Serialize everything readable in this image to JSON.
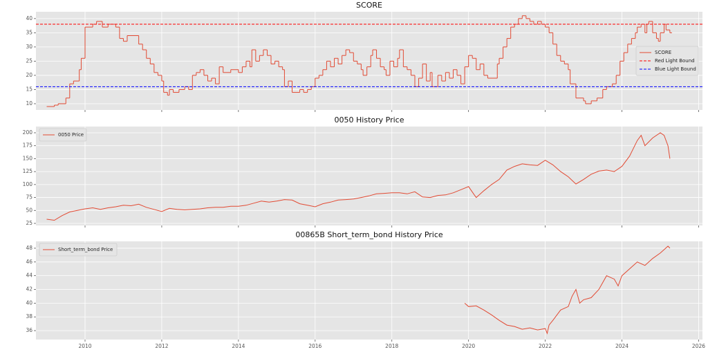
{
  "chart_data": [
    {
      "type": "line",
      "title": "SCORE",
      "drawstyle": "steps-post",
      "grid": true,
      "legend": "center right",
      "xlim": [
        2008.72,
        2026.1
      ],
      "xticks": [
        2010,
        2012,
        2014,
        2016,
        2018,
        2020,
        2022,
        2024,
        2026
      ],
      "ylim": [
        7.8,
        42.4
      ],
      "yticks": [
        10,
        15,
        20,
        25,
        30,
        35,
        40
      ],
      "series": [
        {
          "name": "SCORE",
          "color": "#e24a33",
          "x": [
            2009.0,
            2009.2,
            2009.3,
            2009.5,
            2009.6,
            2009.7,
            2009.85,
            2009.9,
            2010.0,
            2010.2,
            2010.3,
            2010.45,
            2010.6,
            2010.8,
            2010.9,
            2011.0,
            2011.1,
            2011.4,
            2011.5,
            2011.6,
            2011.7,
            2011.8,
            2011.9,
            2012.0,
            2012.05,
            2012.15,
            2012.2,
            2012.3,
            2012.45,
            2012.6,
            2012.7,
            2012.8,
            2012.9,
            2013.0,
            2013.1,
            2013.2,
            2013.3,
            2013.4,
            2013.5,
            2013.6,
            2013.8,
            2014.0,
            2014.1,
            2014.2,
            2014.3,
            2014.35,
            2014.45,
            2014.55,
            2014.65,
            2014.75,
            2014.85,
            2014.95,
            2015.05,
            2015.15,
            2015.2,
            2015.3,
            2015.4,
            2015.6,
            2015.7,
            2015.8,
            2015.9,
            2016.0,
            2016.1,
            2016.2,
            2016.3,
            2016.4,
            2016.5,
            2016.6,
            2016.7,
            2016.8,
            2016.9,
            2017.0,
            2017.1,
            2017.2,
            2017.25,
            2017.35,
            2017.45,
            2017.5,
            2017.6,
            2017.7,
            2017.8,
            2017.85,
            2017.95,
            2018.05,
            2018.15,
            2018.2,
            2018.3,
            2018.4,
            2018.5,
            2018.6,
            2018.7,
            2018.8,
            2018.9,
            2019.0,
            2019.05,
            2019.2,
            2019.3,
            2019.4,
            2019.5,
            2019.6,
            2019.7,
            2019.8,
            2019.9,
            2020.0,
            2020.1,
            2020.2,
            2020.3,
            2020.4,
            2020.5,
            2020.75,
            2020.8,
            2020.9,
            2021.0,
            2021.1,
            2021.2,
            2021.3,
            2021.4,
            2021.5,
            2021.6,
            2021.7,
            2021.8,
            2021.9,
            2022.0,
            2022.1,
            2022.2,
            2022.3,
            2022.4,
            2022.5,
            2022.6,
            2022.65,
            2022.8,
            2023.0,
            2023.05,
            2023.2,
            2023.35,
            2023.5,
            2023.6,
            2023.75,
            2023.85,
            2023.95,
            2024.05,
            2024.15,
            2024.25,
            2024.35,
            2024.4,
            2024.5,
            2024.6,
            2024.65,
            2024.7,
            2024.8,
            2024.9,
            2024.95,
            2025.0,
            2025.1,
            2025.15,
            2025.25
          ],
          "values": [
            9,
            9.5,
            10,
            12,
            17,
            18,
            22,
            26,
            37,
            38,
            39,
            37,
            38,
            37,
            33,
            32,
            34,
            31,
            29,
            26,
            24,
            21,
            20,
            18,
            14,
            13,
            15,
            14,
            15,
            16,
            15,
            20,
            21,
            22,
            20,
            18,
            19,
            17,
            23,
            21,
            22,
            21,
            23,
            25,
            23,
            29,
            25,
            27,
            29,
            27,
            24,
            25,
            23,
            22,
            16,
            18,
            14,
            15,
            14,
            15,
            16,
            19,
            20,
            22,
            25,
            23,
            26,
            24,
            27,
            29,
            28,
            25,
            24,
            22,
            20,
            23,
            27,
            29,
            26,
            23,
            22,
            20,
            25,
            23,
            26,
            29,
            23,
            22,
            20,
            16,
            19,
            24,
            18,
            21,
            16,
            20,
            18,
            21,
            19,
            22,
            20,
            17,
            23,
            27,
            26,
            22,
            24,
            20,
            19,
            24,
            26,
            30,
            33,
            37,
            38,
            40,
            41,
            40,
            39,
            38,
            39,
            38,
            37,
            35,
            31,
            27,
            25,
            24,
            22,
            17,
            12,
            11,
            10,
            11,
            12,
            15,
            16,
            17,
            20,
            25,
            28,
            31,
            33,
            35,
            37,
            38,
            35,
            38,
            39,
            35,
            33,
            32,
            35,
            38,
            36,
            35
          ]
        }
      ],
      "hlines": [
        {
          "name": "Red Light Bound",
          "color": "#ff0000",
          "value": 38
        },
        {
          "name": "Blue Light Bound",
          "color": "#0000ff",
          "value": 16
        }
      ]
    },
    {
      "type": "line",
      "title": "0050 History Price",
      "grid": true,
      "legend": "upper left",
      "xlim": [
        2008.72,
        2026.1
      ],
      "xticks": [
        2010,
        2012,
        2014,
        2016,
        2018,
        2020,
        2022,
        2024,
        2026
      ],
      "ylim": [
        21,
        212
      ],
      "yticks": [
        25,
        50,
        75,
        100,
        125,
        150,
        175,
        200
      ],
      "series": [
        {
          "name": "0050 Price",
          "color": "#e24a33",
          "x": [
            2009.0,
            2009.2,
            2009.4,
            2009.6,
            2009.8,
            2010.0,
            2010.2,
            2010.4,
            2010.6,
            2010.8,
            2011.0,
            2011.2,
            2011.4,
            2011.6,
            2011.8,
            2012.0,
            2012.2,
            2012.4,
            2012.6,
            2012.8,
            2013.0,
            2013.2,
            2013.4,
            2013.6,
            2013.8,
            2014.0,
            2014.2,
            2014.4,
            2014.6,
            2014.8,
            2015.0,
            2015.2,
            2015.4,
            2015.6,
            2015.8,
            2016.0,
            2016.2,
            2016.4,
            2016.6,
            2016.8,
            2017.0,
            2017.2,
            2017.4,
            2017.6,
            2017.8,
            2018.0,
            2018.2,
            2018.4,
            2018.6,
            2018.8,
            2019.0,
            2019.2,
            2019.4,
            2019.6,
            2019.8,
            2020.0,
            2020.15,
            2020.2,
            2020.4,
            2020.6,
            2020.8,
            2021.0,
            2021.2,
            2021.4,
            2021.6,
            2021.8,
            2022.0,
            2022.2,
            2022.4,
            2022.6,
            2022.8,
            2023.0,
            2023.2,
            2023.4,
            2023.6,
            2023.8,
            2024.0,
            2024.2,
            2024.4,
            2024.5,
            2024.6,
            2024.8,
            2025.0,
            2025.1,
            2025.2,
            2025.25
          ],
          "values": [
            33,
            31,
            40,
            47,
            50,
            53,
            55,
            52,
            55,
            57,
            60,
            59,
            62,
            56,
            52,
            48,
            54,
            52,
            51,
            52,
            53,
            55,
            56,
            56,
            58,
            58,
            60,
            64,
            68,
            66,
            68,
            71,
            70,
            63,
            60,
            57,
            63,
            66,
            70,
            71,
            72,
            75,
            78,
            82,
            83,
            84,
            84,
            82,
            86,
            76,
            75,
            79,
            80,
            84,
            90,
            96,
            80,
            75,
            88,
            100,
            110,
            128,
            135,
            140,
            138,
            137,
            147,
            138,
            125,
            115,
            101,
            110,
            120,
            126,
            128,
            125,
            135,
            155,
            185,
            195,
            175,
            190,
            200,
            195,
            175,
            150
          ]
        }
      ]
    },
    {
      "type": "line",
      "title": "00865B Short_term_bond History Price",
      "grid": true,
      "legend": "upper left",
      "xlim": [
        2008.72,
        2026.1
      ],
      "xticks": [
        2010,
        2012,
        2014,
        2016,
        2018,
        2020,
        2022,
        2024,
        2026
      ],
      "ylim": [
        34.7,
        49.0
      ],
      "yticks": [
        36,
        38,
        40,
        42,
        44,
        46,
        48
      ],
      "series": [
        {
          "name": "Short_term_bond Price",
          "color": "#e24a33",
          "x": [
            2019.9,
            2020.0,
            2020.2,
            2020.4,
            2020.6,
            2020.8,
            2021.0,
            2021.2,
            2021.4,
            2021.6,
            2021.8,
            2022.0,
            2022.05,
            2022.1,
            2022.2,
            2022.4,
            2022.6,
            2022.7,
            2022.8,
            2022.9,
            2023.0,
            2023.2,
            2023.4,
            2023.6,
            2023.8,
            2023.9,
            2024.0,
            2024.2,
            2024.4,
            2024.6,
            2024.8,
            2025.0,
            2025.2,
            2025.25
          ],
          "values": [
            40,
            39.5,
            39.6,
            39,
            38.3,
            37.5,
            36.8,
            36.6,
            36.2,
            36.4,
            36.1,
            36.3,
            35.6,
            36.8,
            37.5,
            39,
            39.5,
            41,
            42,
            40,
            40.5,
            40.8,
            42,
            44,
            43.5,
            42.5,
            44,
            45,
            46,
            45.5,
            46.5,
            47.3,
            48.3,
            48
          ]
        }
      ]
    }
  ]
}
